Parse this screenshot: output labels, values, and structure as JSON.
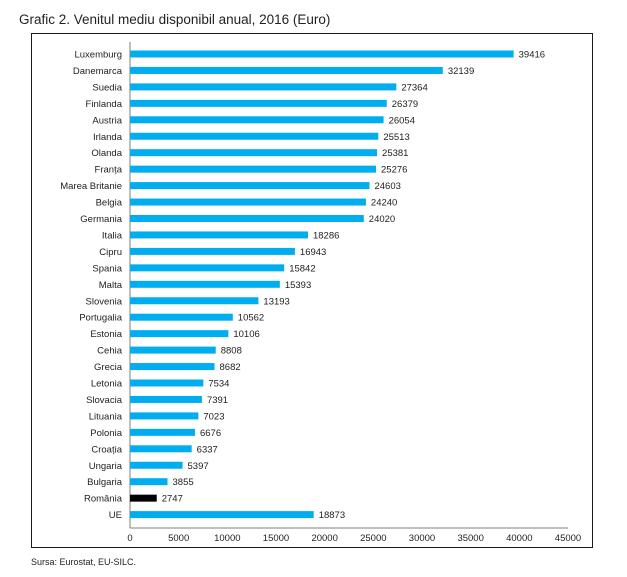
{
  "title": "Grafic 2. Venitul mediu disponibil anual, 2016 (Euro)",
  "source": "Sursa: Eurostat, EU-SILC.",
  "colors": {
    "bar": "#00aeef",
    "highlight": "#000000",
    "axis": "#7f7f7f",
    "frame": "#1a1a1a"
  },
  "chart_data": {
    "type": "bar",
    "orientation": "horizontal",
    "title": "Grafic 2. Venitul mediu disponibil anual, 2016 (Euro)",
    "xlabel": "",
    "ylabel": "",
    "xlim": [
      0,
      45000
    ],
    "xticks": [
      0,
      5000,
      10000,
      15000,
      20000,
      25000,
      30000,
      35000,
      40000,
      45000
    ],
    "grid": false,
    "legend": "none",
    "highlighted": "România",
    "categories": [
      "Luxemburg",
      "Danemarca",
      "Suedia",
      "Finlanda",
      "Austria",
      "Irlanda",
      "Olanda",
      "Franța",
      "Marea Britanie",
      "Belgia",
      "Germania",
      "Italia",
      "Cipru",
      "Spania",
      "Malta",
      "Slovenia",
      "Portugalia",
      "Estonia",
      "Cehia",
      "Grecia",
      "Letonia",
      "Slovacia",
      "Lituania",
      "Polonia",
      "Croația",
      "Ungaria",
      "Bulgaria",
      "România",
      "UE"
    ],
    "values": [
      39416,
      32139,
      27364,
      26379,
      26054,
      25513,
      25381,
      25276,
      24603,
      24240,
      24020,
      18286,
      16943,
      15842,
      15393,
      13193,
      10562,
      10106,
      8808,
      8682,
      7534,
      7391,
      7023,
      6676,
      6337,
      5397,
      3855,
      2747,
      18873
    ]
  }
}
